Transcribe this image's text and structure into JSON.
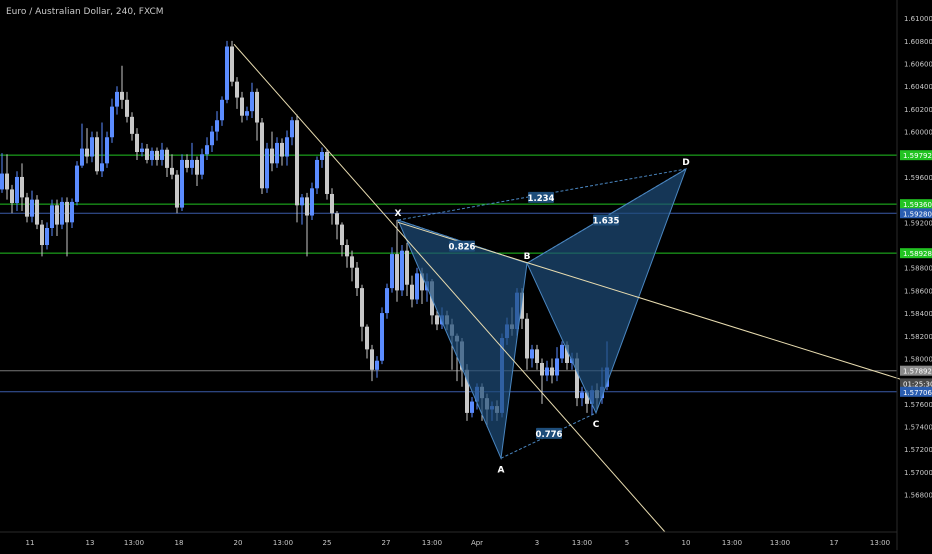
{
  "header": {
    "symbol_title": "Euro / Australian Dollar, 240, FXCM"
  },
  "colors": {
    "background": "#000000",
    "candle_up": "#5b8cff",
    "candle_down": "#c8c8c8",
    "green_level": "#22c322",
    "blue_level": "#3b5ba8",
    "pattern_fill": "#1e4d7a",
    "pattern_stroke": "#4a86c0",
    "trendline": "#e8dcb0",
    "axis_text": "#c8c8c8"
  },
  "chart_data": {
    "type": "candlestick",
    "title": "Euro / Australian Dollar, 240, FXCM",
    "ylim": [
      1.5647,
      1.6116
    ],
    "xlim": [
      0,
      933
    ],
    "y_ticks": [
      1.61,
      1.608,
      1.606,
      1.604,
      1.602,
      1.6,
      1.596,
      1.592,
      1.588,
      1.586,
      1.584,
      1.582,
      1.58,
      1.576,
      1.574,
      1.572,
      1.57,
      1.568
    ],
    "y_tick_labels": [
      "1.61000",
      "1.60800",
      "1.60600",
      "1.60400",
      "1.60200",
      "1.60000",
      "1.59600",
      "1.59200",
      "1.58800",
      "1.58600",
      "1.58400",
      "1.58200",
      "1.58000",
      "1.57600",
      "1.57400",
      "1.57200",
      "1.57000",
      "1.56800"
    ],
    "x_ticks": [
      {
        "label": "11",
        "x": 30
      },
      {
        "label": "13",
        "x": 90
      },
      {
        "label": "13:00",
        "x": 134
      },
      {
        "label": "18",
        "x": 179
      },
      {
        "label": "20",
        "x": 238
      },
      {
        "label": "13:00",
        "x": 283
      },
      {
        "label": "25",
        "x": 327
      },
      {
        "label": "27",
        "x": 386
      },
      {
        "label": "13:00",
        "x": 432
      },
      {
        "label": "Apr",
        "x": 477
      },
      {
        "label": "3",
        "x": 537
      },
      {
        "label": "13:00",
        "x": 582
      },
      {
        "label": "5",
        "x": 627
      },
      {
        "label": "10",
        "x": 686
      },
      {
        "label": "13:00",
        "x": 732
      },
      {
        "label": "13:00",
        "x": 780
      },
      {
        "label": "17",
        "x": 834
      },
      {
        "label": "13:00",
        "x": 880
      }
    ],
    "price_levels": [
      {
        "label": "1.59792",
        "price": 1.59792,
        "color": "green"
      },
      {
        "label": "1.59360",
        "price": 1.5936,
        "color": "green"
      },
      {
        "label": "1.59280",
        "price": 1.5928,
        "color": "blue"
      },
      {
        "label": "1.58928",
        "price": 1.58928,
        "color": "green"
      },
      {
        "label": "1.57892",
        "price": 1.57892,
        "color": "gray"
      },
      {
        "label": "01:25:30",
        "price": 1.5778,
        "color": "countdown"
      },
      {
        "label": "1.57706",
        "price": 1.57706,
        "color": "blue"
      }
    ],
    "pattern_points": [
      {
        "label": "X",
        "x": 398,
        "price": 1.5922
      },
      {
        "label": "A",
        "x": 501,
        "price": 1.5712
      },
      {
        "label": "B",
        "x": 527,
        "price": 1.5884
      },
      {
        "label": "C",
        "x": 596,
        "price": 1.5752
      },
      {
        "label": "D",
        "x": 686,
        "price": 1.5967
      }
    ],
    "ratios": [
      {
        "label": "0.826",
        "x": 462,
        "price": 1.5899
      },
      {
        "label": "1.234",
        "x": 541,
        "price": 1.5942
      },
      {
        "label": "1.635",
        "x": 606,
        "price": 1.5922
      },
      {
        "label": "0.776",
        "x": 549,
        "price": 1.5734
      }
    ],
    "trendlines": [
      {
        "x1": 234,
        "p1": 1.6077,
        "x2": 665,
        "p2": 1.5647
      },
      {
        "x1": 398,
        "p1": 1.592,
        "x2": 932,
        "p2": 1.5773
      }
    ],
    "candles": [
      [
        2,
        1.5949,
        1.5963,
        1.5946,
        1.5981
      ],
      [
        7,
        1.5963,
        1.5949,
        1.594,
        1.598
      ],
      [
        12,
        1.5949,
        1.5937,
        1.5928,
        1.5953
      ],
      [
        17,
        1.5937,
        1.596,
        1.593,
        1.5965
      ],
      [
        22,
        1.596,
        1.5942,
        1.593,
        1.5972
      ],
      [
        27,
        1.5942,
        1.5925,
        1.592,
        1.5946
      ],
      [
        32,
        1.5925,
        1.594,
        1.592,
        1.5948
      ],
      [
        37,
        1.594,
        1.5918,
        1.5914,
        1.5944
      ],
      [
        42,
        1.5918,
        1.59,
        1.589,
        1.5922
      ],
      [
        47,
        1.59,
        1.5915,
        1.5896,
        1.592
      ],
      [
        52,
        1.5915,
        1.5935,
        1.5908,
        1.594
      ],
      [
        57,
        1.5935,
        1.5918,
        1.5908,
        1.594
      ],
      [
        62,
        1.5918,
        1.5938,
        1.5914,
        1.5942
      ],
      [
        67,
        1.5938,
        1.592,
        1.589,
        1.5942
      ],
      [
        72,
        1.592,
        1.5938,
        1.5915,
        1.5941
      ],
      [
        77,
        1.5938,
        1.597,
        1.5935,
        1.5974
      ],
      [
        82,
        1.597,
        1.5985,
        1.5968,
        1.6007
      ],
      [
        87,
        1.5985,
        1.5978,
        1.5972,
        1.6003
      ],
      [
        92,
        1.5978,
        1.5995,
        1.5973,
        1.6
      ],
      [
        97,
        1.5995,
        1.5965,
        1.5962,
        1.6
      ],
      [
        102,
        1.5965,
        1.5972,
        1.596,
        1.6008
      ],
      [
        107,
        1.5972,
        1.5995,
        1.5968,
        1.6
      ],
      [
        112,
        1.5995,
        1.6022,
        1.599,
        1.6029
      ],
      [
        117,
        1.6022,
        1.6035,
        1.6015,
        1.604
      ],
      [
        122,
        1.6035,
        1.6028,
        1.602,
        1.6058
      ],
      [
        127,
        1.6028,
        1.6013,
        1.6008,
        1.6035
      ],
      [
        132,
        1.6013,
        1.5998,
        1.5992,
        1.6017
      ],
      [
        137,
        1.5998,
        1.5982,
        1.5975,
        1.6003
      ],
      [
        142,
        1.5982,
        1.5985,
        1.5978,
        1.599
      ],
      [
        147,
        1.5985,
        1.5975,
        1.5972,
        1.5989
      ],
      [
        152,
        1.5975,
        1.5983,
        1.597,
        1.5986
      ],
      [
        157,
        1.5983,
        1.5975,
        1.597,
        1.5986
      ],
      [
        162,
        1.5975,
        1.5984,
        1.597,
        1.599
      ],
      [
        167,
        1.5984,
        1.5968,
        1.596,
        1.5986
      ],
      [
        172,
        1.5968,
        1.5962,
        1.5958,
        1.598
      ],
      [
        177,
        1.5962,
        1.5933,
        1.5928,
        1.5966
      ],
      [
        182,
        1.5933,
        1.5975,
        1.593,
        1.598
      ],
      [
        187,
        1.5975,
        1.5968,
        1.5964,
        1.598
      ],
      [
        192,
        1.5968,
        1.5975,
        1.5962,
        1.599
      ],
      [
        197,
        1.5975,
        1.5962,
        1.5952,
        1.5978
      ],
      [
        202,
        1.5962,
        1.598,
        1.5958,
        1.5985
      ],
      [
        207,
        1.598,
        1.5988,
        1.5975,
        1.5995
      ],
      [
        212,
        1.5988,
        1.6,
        1.5982,
        1.6005
      ],
      [
        217,
        1.6,
        1.601,
        1.5992,
        1.6018
      ],
      [
        222,
        1.601,
        1.6028,
        1.6005,
        1.6031
      ],
      [
        227,
        1.6028,
        1.6075,
        1.6025,
        1.608
      ],
      [
        232,
        1.6075,
        1.6044,
        1.604,
        1.608
      ],
      [
        237,
        1.6044,
        1.603,
        1.602,
        1.6048
      ],
      [
        242,
        1.603,
        1.6014,
        1.6008,
        1.6035
      ],
      [
        247,
        1.6014,
        1.6018,
        1.601,
        1.6022
      ],
      [
        252,
        1.6018,
        1.6035,
        1.6012,
        1.6043
      ],
      [
        257,
        1.6035,
        1.6008,
        1.5992,
        1.6038
      ],
      [
        262,
        1.6008,
        1.595,
        1.5945,
        1.6012
      ],
      [
        267,
        1.595,
        1.5985,
        1.5946,
        1.599
      ],
      [
        272,
        1.5985,
        1.5972,
        1.5965,
        1.6
      ],
      [
        277,
        1.5972,
        1.599,
        1.5968,
        1.5995
      ],
      [
        282,
        1.599,
        1.5978,
        1.597,
        1.5994
      ],
      [
        287,
        1.5978,
        1.5995,
        1.597,
        1.6001
      ],
      [
        292,
        1.5995,
        1.601,
        1.5988,
        1.6013
      ],
      [
        297,
        1.601,
        1.5935,
        1.592,
        1.6015
      ],
      [
        302,
        1.5935,
        1.5942,
        1.5918,
        1.5945
      ],
      [
        307,
        1.5942,
        1.5926,
        1.589,
        1.5946
      ],
      [
        312,
        1.5926,
        1.595,
        1.5922,
        1.5955
      ],
      [
        317,
        1.595,
        1.5975,
        1.5945,
        1.5978
      ],
      [
        322,
        1.5975,
        1.5982,
        1.5968,
        1.5986
      ],
      [
        327,
        1.5982,
        1.5945,
        1.594,
        1.5984
      ],
      [
        332,
        1.5945,
        1.5928,
        1.5918,
        1.595
      ],
      [
        337,
        1.5928,
        1.5918,
        1.5905,
        1.593
      ],
      [
        342,
        1.5918,
        1.59,
        1.589,
        1.592
      ],
      [
        347,
        1.59,
        1.589,
        1.588,
        1.5905
      ],
      [
        352,
        1.589,
        1.588,
        1.5868,
        1.5895
      ],
      [
        357,
        1.588,
        1.5862,
        1.5855,
        1.5885
      ],
      [
        362,
        1.5862,
        1.5828,
        1.5815,
        1.5865
      ],
      [
        367,
        1.5828,
        1.5808,
        1.58,
        1.583
      ],
      [
        372,
        1.5808,
        1.579,
        1.578,
        1.5812
      ],
      [
        377,
        1.579,
        1.5798,
        1.5783,
        1.5802
      ],
      [
        382,
        1.5798,
        1.584,
        1.5795,
        1.5845
      ],
      [
        387,
        1.584,
        1.5862,
        1.5835,
        1.5866
      ],
      [
        392,
        1.5862,
        1.5892,
        1.5858,
        1.5898
      ],
      [
        397,
        1.5892,
        1.586,
        1.585,
        1.5922
      ],
      [
        402,
        1.586,
        1.5895,
        1.5855,
        1.59
      ],
      [
        407,
        1.5895,
        1.5865,
        1.5855,
        1.5902
      ],
      [
        412,
        1.5865,
        1.5852,
        1.5845,
        1.5873
      ],
      [
        417,
        1.5852,
        1.5875,
        1.5848,
        1.588
      ],
      [
        422,
        1.5875,
        1.586,
        1.5848,
        1.588
      ],
      [
        427,
        1.586,
        1.5868,
        1.585,
        1.5875
      ],
      [
        432,
        1.5868,
        1.5838,
        1.583,
        1.587
      ],
      [
        437,
        1.5838,
        1.583,
        1.5825,
        1.5842
      ],
      [
        442,
        1.583,
        1.5838,
        1.5826,
        1.5845
      ],
      [
        447,
        1.5838,
        1.583,
        1.5825,
        1.5842
      ],
      [
        452,
        1.583,
        1.582,
        1.579,
        1.5835
      ],
      [
        457,
        1.582,
        1.5815,
        1.578,
        1.5822
      ],
      [
        462,
        1.5815,
        1.579,
        1.5775,
        1.5818
      ],
      [
        467,
        1.579,
        1.5752,
        1.5745,
        1.5795
      ],
      [
        472,
        1.5752,
        1.5762,
        1.5748,
        1.5766
      ],
      [
        477,
        1.5762,
        1.5775,
        1.5755,
        1.5778
      ],
      [
        482,
        1.5775,
        1.5765,
        1.5745,
        1.5778
      ],
      [
        487,
        1.5765,
        1.5755,
        1.574,
        1.5769
      ],
      [
        492,
        1.5755,
        1.5758,
        1.5745,
        1.5762
      ],
      [
        497,
        1.5758,
        1.5752,
        1.5745,
        1.5763
      ],
      [
        502,
        1.5752,
        1.5818,
        1.5748,
        1.5822
      ],
      [
        507,
        1.5818,
        1.583,
        1.5812,
        1.5836
      ],
      [
        512,
        1.583,
        1.5826,
        1.582,
        1.5845
      ],
      [
        517,
        1.5826,
        1.5858,
        1.582,
        1.5862
      ],
      [
        522,
        1.5858,
        1.5835,
        1.5826,
        1.5862
      ],
      [
        527,
        1.5835,
        1.58,
        1.579,
        1.584
      ],
      [
        532,
        1.58,
        1.5808,
        1.5792,
        1.5812
      ],
      [
        537,
        1.5808,
        1.5796,
        1.579,
        1.5812
      ],
      [
        542,
        1.5796,
        1.5785,
        1.576,
        1.58
      ],
      [
        547,
        1.5785,
        1.5792,
        1.578,
        1.5798
      ],
      [
        552,
        1.5792,
        1.5785,
        1.5778,
        1.58
      ],
      [
        557,
        1.5785,
        1.58,
        1.578,
        1.581
      ],
      [
        562,
        1.58,
        1.5812,
        1.5796,
        1.5815
      ],
      [
        567,
        1.5812,
        1.5796,
        1.579,
        1.5815
      ],
      [
        572,
        1.5796,
        1.58,
        1.579,
        1.5805
      ],
      [
        577,
        1.58,
        1.5765,
        1.5758,
        1.5805
      ],
      [
        582,
        1.5765,
        1.577,
        1.5758,
        1.5775
      ],
      [
        587,
        1.577,
        1.576,
        1.5752,
        1.5772
      ],
      [
        592,
        1.576,
        1.5772,
        1.575,
        1.5776
      ],
      [
        597,
        1.5772,
        1.5765,
        1.5755,
        1.5778
      ],
      [
        602,
        1.5765,
        1.5775,
        1.576,
        1.5792
      ],
      [
        607,
        1.5775,
        1.5792,
        1.5772,
        1.5815
      ]
    ]
  }
}
